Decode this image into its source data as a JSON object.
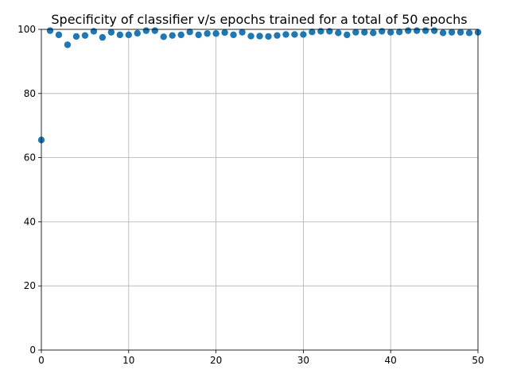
{
  "chart_data": {
    "type": "scatter",
    "title": "Specificity of classifier v/s epochs trained for a total of 50 epochs",
    "xlabel": "",
    "ylabel": "",
    "xlim": [
      0,
      50
    ],
    "ylim": [
      0,
      100
    ],
    "xticks": [
      0,
      10,
      20,
      30,
      40,
      50
    ],
    "yticks": [
      0,
      20,
      40,
      60,
      80,
      100
    ],
    "grid": true,
    "marker_color": "#1f77b4",
    "series": [
      {
        "x": [
          0,
          1,
          2,
          3,
          4,
          5,
          6,
          7,
          8,
          9,
          10,
          11,
          12,
          13,
          14,
          15,
          16,
          17,
          18,
          19,
          20,
          21,
          22,
          23,
          24,
          25,
          26,
          27,
          28,
          29,
          30,
          31,
          32,
          33,
          34,
          35,
          36,
          37,
          38,
          39,
          40,
          41,
          42,
          43,
          44,
          45,
          46,
          47,
          48,
          49,
          50
        ],
        "y": [
          65.5,
          99.6,
          98.3,
          95.2,
          97.8,
          98.1,
          99.4,
          97.5,
          99.1,
          98.3,
          98.3,
          98.8,
          99.6,
          99.6,
          97.7,
          98.1,
          98.3,
          99.2,
          98.3,
          98.7,
          98.7,
          99.0,
          98.3,
          99.1,
          97.9,
          97.9,
          97.8,
          98.1,
          98.4,
          98.4,
          98.4,
          99.2,
          99.4,
          99.4,
          98.9,
          98.3,
          99.1,
          99.1,
          98.9,
          99.4,
          99.1,
          99.2,
          99.6,
          99.6,
          99.6,
          99.6,
          98.9,
          99.1,
          99.1,
          98.9,
          99.1
        ]
      }
    ]
  }
}
